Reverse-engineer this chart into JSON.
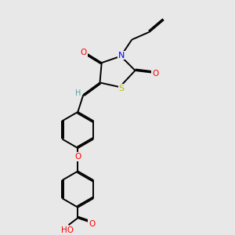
{
  "bg_color": "#e8e8e8",
  "atom_colors": {
    "C": "#000000",
    "H": "#5a9e9e",
    "N": "#0000ff",
    "O": "#ff0000",
    "S": "#b8b800"
  },
  "figsize": [
    3.0,
    3.0
  ],
  "dpi": 100,
  "lw": 1.4,
  "fs": 7.5
}
